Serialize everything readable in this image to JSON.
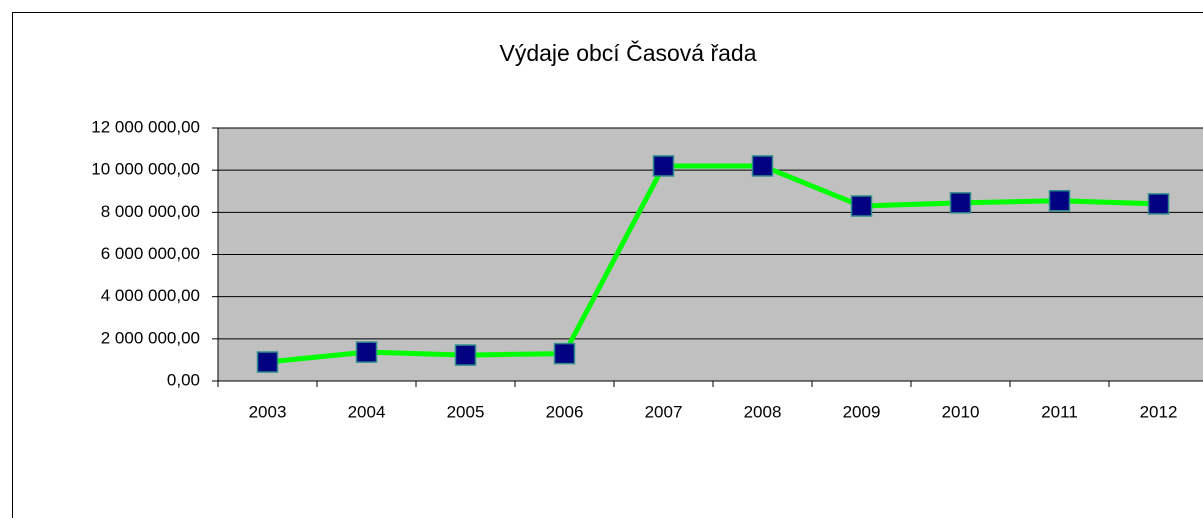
{
  "chart_data": {
    "type": "line",
    "title": "Výdaje obcí Časová řada",
    "categories": [
      "2003",
      "2004",
      "2005",
      "2006",
      "2007",
      "2008",
      "2009",
      "2010",
      "2011",
      "2012"
    ],
    "values": [
      900000,
      1370000,
      1230000,
      1300000,
      10200000,
      10200000,
      8300000,
      8450000,
      8550000,
      8400000
    ],
    "color": "#00ff00",
    "marker_color": "#000080",
    "plot_background": "#c0c0c0",
    "ylim": [
      0,
      12000000
    ],
    "yticks": [
      {
        "value": 0,
        "label": "0,00"
      },
      {
        "value": 2000000,
        "label": "2 000 000,00"
      },
      {
        "value": 4000000,
        "label": "4 000 000,00"
      },
      {
        "value": 6000000,
        "label": "6 000 000,00"
      },
      {
        "value": 8000000,
        "label": "8 000 000,00"
      },
      {
        "value": 10000000,
        "label": "10 000 000,00"
      },
      {
        "value": 12000000,
        "label": "12 000 000,00"
      }
    ],
    "grid": true
  }
}
